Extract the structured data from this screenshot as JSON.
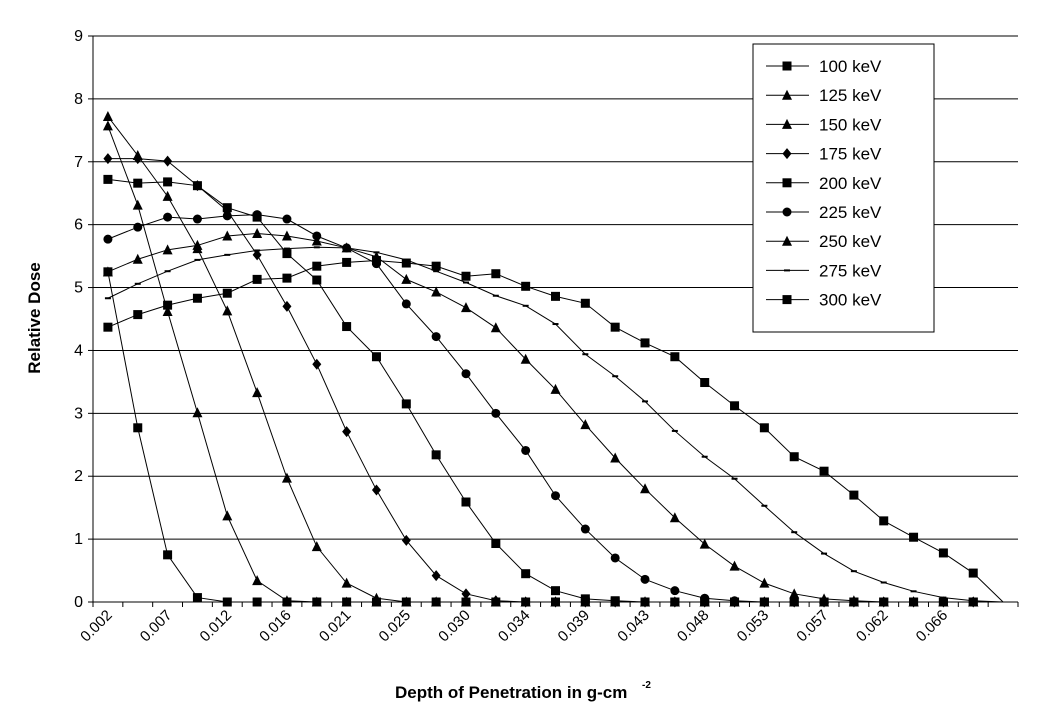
{
  "chart_data": {
    "type": "line",
    "title": "",
    "xlabel": "Depth of Penetration in g-cm",
    "xlabel_superscript": "-2",
    "ylabel": "Relative Dose",
    "ylim": [
      0,
      9
    ],
    "yticks": [
      "0",
      "1",
      "2",
      "3",
      "4",
      "5",
      "6",
      "7",
      "8",
      "9"
    ],
    "grid": true,
    "legend_position": "top-right",
    "categories": [
      "0.002",
      "",
      "0.007",
      "",
      "0.012",
      "",
      "0.016",
      "",
      "0.021",
      "",
      "0.025",
      "",
      "0.030",
      "",
      "0.034",
      "",
      "0.039",
      "",
      "0.043",
      "",
      "0.048",
      "",
      "0.053",
      "",
      "0.057",
      "",
      "0.062",
      "",
      "0.066",
      "",
      ""
    ],
    "series": [
      {
        "name": "100 keV",
        "marker": "square",
        "values": [
          5.25,
          2.77,
          0.75,
          0.07,
          0,
          0,
          0,
          0,
          0,
          0,
          0,
          0,
          0,
          0,
          0,
          0,
          0,
          0,
          0,
          0,
          0,
          0,
          0,
          0,
          0,
          0,
          0,
          0,
          0,
          0,
          0
        ]
      },
      {
        "name": "125 keV",
        "marker": "triangle",
        "values": [
          7.57,
          6.31,
          4.62,
          3.01,
          1.37,
          0.34,
          0.02,
          0,
          0,
          0,
          0,
          0,
          0,
          0,
          0,
          0,
          0,
          0,
          0,
          0,
          0,
          0,
          0,
          0,
          0,
          0,
          0,
          0,
          0,
          0,
          0
        ]
      },
      {
        "name": "150 keV",
        "marker": "triangle",
        "values": [
          7.72,
          7.1,
          6.45,
          5.62,
          4.63,
          3.33,
          1.97,
          0.88,
          0.3,
          0.06,
          0,
          0,
          0,
          0,
          0,
          0,
          0,
          0,
          0,
          0,
          0,
          0,
          0,
          0,
          0,
          0,
          0,
          0,
          0,
          0,
          0
        ]
      },
      {
        "name": "175 keV",
        "marker": "diamond",
        "values": [
          7.05,
          7.05,
          7.01,
          6.62,
          6.22,
          5.52,
          4.7,
          3.78,
          2.71,
          1.78,
          0.98,
          0.42,
          0.13,
          0.02,
          0,
          0,
          0,
          0,
          0,
          0,
          0,
          0,
          0,
          0,
          0,
          0,
          0,
          0,
          0,
          0,
          0
        ]
      },
      {
        "name": "200 keV",
        "marker": "square",
        "values": [
          6.72,
          6.66,
          6.68,
          6.62,
          6.27,
          6.12,
          5.54,
          5.12,
          4.38,
          3.9,
          3.15,
          2.34,
          1.59,
          0.93,
          0.45,
          0.18,
          0.05,
          0.02,
          0,
          0,
          0,
          0,
          0,
          0,
          0,
          0,
          0,
          0,
          0,
          0,
          0
        ]
      },
      {
        "name": "225 keV",
        "marker": "circle",
        "values": [
          5.77,
          5.96,
          6.12,
          6.09,
          6.14,
          6.16,
          6.09,
          5.82,
          5.63,
          5.38,
          4.74,
          4.22,
          3.63,
          3.0,
          2.41,
          1.69,
          1.16,
          0.7,
          0.36,
          0.18,
          0.06,
          0.02,
          0,
          0,
          0,
          0,
          0,
          0,
          0,
          0,
          0
        ]
      },
      {
        "name": "250 keV",
        "marker": "triangle",
        "values": [
          5.25,
          5.45,
          5.6,
          5.67,
          5.82,
          5.86,
          5.82,
          5.74,
          5.63,
          5.49,
          5.13,
          4.93,
          4.68,
          4.36,
          3.86,
          3.38,
          2.82,
          2.29,
          1.8,
          1.34,
          0.92,
          0.57,
          0.3,
          0.13,
          0.05,
          0.02,
          0,
          0,
          0,
          0,
          0
        ]
      },
      {
        "name": "275 keV",
        "marker": "dash",
        "values": [
          4.83,
          5.06,
          5.26,
          5.44,
          5.52,
          5.59,
          5.62,
          5.64,
          5.63,
          5.56,
          5.44,
          5.26,
          5.08,
          4.87,
          4.71,
          4.42,
          3.94,
          3.59,
          3.19,
          2.72,
          2.31,
          1.96,
          1.53,
          1.11,
          0.77,
          0.49,
          0.31,
          0.17,
          0.07,
          0.02,
          0
        ]
      },
      {
        "name": "300 keV",
        "marker": "square",
        "values": [
          4.37,
          4.57,
          4.72,
          4.83,
          4.91,
          5.13,
          5.15,
          5.34,
          5.4,
          5.43,
          5.39,
          5.34,
          5.18,
          5.22,
          5.02,
          4.86,
          4.75,
          4.37,
          4.12,
          3.9,
          3.49,
          3.12,
          2.77,
          2.31,
          2.08,
          1.7,
          1.29,
          1.03,
          0.78,
          0.46,
          0
        ]
      }
    ]
  }
}
